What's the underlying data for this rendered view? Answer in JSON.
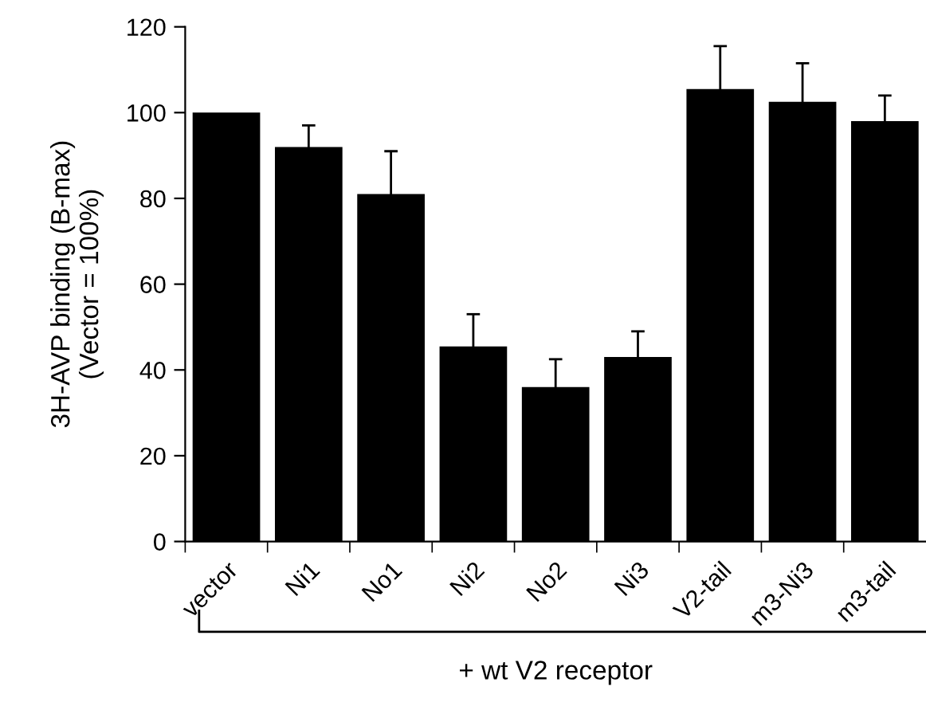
{
  "chart_data": {
    "type": "bar",
    "categories": [
      "vector",
      "Ni1",
      "No1",
      "Ni2",
      "No2",
      "Ni3",
      "V2-tail",
      "m3-Ni3",
      "m3-tail"
    ],
    "values": [
      100,
      92,
      81,
      45.5,
      36,
      43,
      105.5,
      102.5,
      98
    ],
    "errors": [
      null,
      5,
      10,
      7.5,
      6.5,
      6,
      10,
      9,
      6
    ],
    "color": "#000000",
    "ylabel": "3H-AVP binding (B-max)\n(Vector = 100%)",
    "xlabel": "+ wt V2 receptor",
    "ylim": [
      0,
      120
    ],
    "yticks": [
      0,
      20,
      40,
      60,
      80,
      100,
      120
    ],
    "grid": false,
    "legend": false
  }
}
